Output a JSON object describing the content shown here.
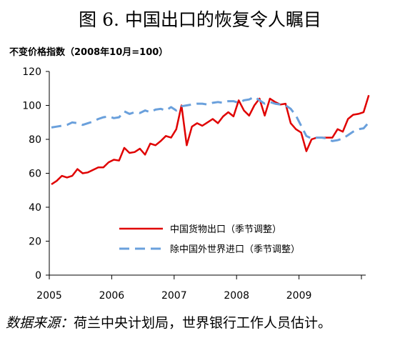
{
  "title": "图 6. 中国出口的恢复令人瞩目",
  "source": {
    "lead": "数据来源：",
    "text": "荷兰中央计划局，世界银行工作人员估计。"
  },
  "chart_data": {
    "type": "line",
    "ylabel": "不变价格指数（2008年10月=100）",
    "ylim": [
      0,
      120
    ],
    "yticks": [
      0,
      20,
      40,
      60,
      80,
      100,
      120
    ],
    "xticks": [
      "2005",
      "2006",
      "2007",
      "2008",
      "2009"
    ],
    "x_start": "2005-01",
    "grid": false,
    "legend_position": "center-right",
    "series": [
      {
        "name": "中国货物出口（季节调整）",
        "color": "#e00000",
        "style": "solid",
        "values": [
          53.5,
          55.5,
          58.5,
          57.5,
          58.5,
          62.5,
          60,
          60.5,
          62,
          63.5,
          63.5,
          66.5,
          68,
          67.5,
          75,
          72,
          72.5,
          74.5,
          71,
          77.5,
          76.5,
          79,
          82,
          81,
          86,
          100,
          76.5,
          87.5,
          89.5,
          88,
          90,
          92,
          89.5,
          93.5,
          96,
          93.5,
          103,
          97,
          94,
          100,
          104,
          94,
          104,
          102,
          100.5,
          101,
          89.5,
          86,
          84,
          73,
          80,
          81,
          81,
          81,
          81,
          86,
          84.5,
          92,
          94.5,
          95,
          96,
          106
        ]
      },
      {
        "name": "除中国外世界进口（季节调整）",
        "color": "#6aa0dc",
        "style": "dashed",
        "values": [
          87,
          87.5,
          88,
          88.5,
          90,
          89.5,
          88.5,
          89.5,
          90.5,
          92,
          93,
          93.5,
          92.5,
          93,
          96.5,
          95,
          96,
          95.5,
          97,
          96,
          97.5,
          98,
          97,
          99,
          97,
          99.5,
          100,
          100.5,
          101,
          101,
          100.5,
          101.5,
          102,
          101.5,
          102.5,
          102.5,
          101.5,
          103,
          103.5,
          105,
          103,
          101,
          102,
          101,
          100.5,
          100,
          98,
          94,
          88,
          82,
          80.5,
          81,
          81,
          80.5,
          79,
          79.5,
          80.5,
          82.5,
          84.5,
          86,
          86.5,
          90
        ]
      }
    ]
  }
}
